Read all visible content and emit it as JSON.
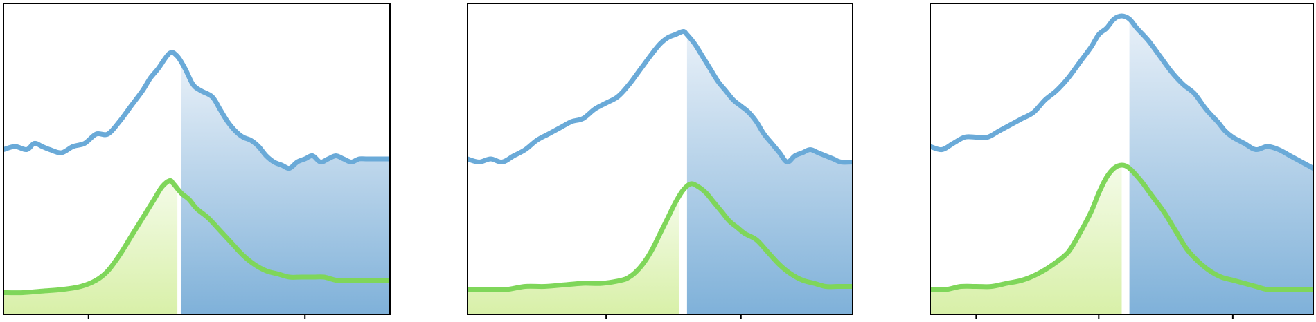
{
  "colors": {
    "blue_line": "#6aaad8",
    "blue_fill_top": "#e8f0f8",
    "blue_fill_bottom": "#7fb1d9",
    "green_line": "#7fd65a",
    "green_fill_top": "#f4fbe8",
    "green_fill_bottom": "#d8f0a8",
    "frame": "#000000",
    "background": "#ffffff"
  },
  "chart_data": [
    {
      "type": "line",
      "xlim": [
        0,
        100
      ],
      "ylim": [
        0,
        100
      ],
      "grid": false,
      "legend": "none",
      "xticks": [
        22,
        78
      ],
      "series": [
        {
          "role": "upper",
          "color": "blue",
          "shade_from": 46,
          "x": [
            0,
            3,
            6,
            8,
            10,
            12,
            15,
            18,
            21,
            24,
            27,
            30,
            33,
            36,
            38,
            40,
            43,
            45,
            47,
            49,
            51,
            54,
            56,
            58,
            60,
            62,
            64,
            66,
            68,
            70,
            72,
            74,
            76,
            78,
            80,
            82,
            84,
            86,
            88,
            90,
            92,
            94,
            96,
            98,
            100
          ],
          "y": [
            53,
            54,
            53,
            55,
            54,
            53,
            52,
            54,
            55,
            58,
            58,
            62,
            67,
            72,
            76,
            79,
            84,
            83,
            79,
            74,
            72,
            70,
            66,
            62,
            59,
            57,
            56,
            54,
            51,
            49,
            48,
            47,
            49,
            50,
            51,
            49,
            50,
            51,
            50,
            49,
            50,
            50,
            50,
            50,
            50
          ]
        },
        {
          "role": "lower",
          "color": "green",
          "shade_to": 45,
          "shade_from": 46,
          "x": [
            0,
            5,
            10,
            15,
            20,
            24,
            27,
            30,
            33,
            36,
            39,
            41,
            43,
            44,
            46,
            48,
            50,
            53,
            56,
            59,
            62,
            65,
            68,
            71,
            74,
            77,
            80,
            83,
            86,
            89,
            92,
            95,
            98,
            100
          ],
          "y": [
            7,
            7,
            7.5,
            8,
            9,
            11,
            14,
            19,
            25,
            31,
            37,
            41,
            43,
            42,
            39,
            37,
            34,
            31,
            27,
            23,
            19,
            16,
            14,
            13,
            12,
            12,
            12,
            12,
            11,
            11,
            11,
            11,
            11,
            11
          ]
        }
      ]
    },
    {
      "type": "line",
      "xlim": [
        0,
        100
      ],
      "ylim": [
        0,
        100
      ],
      "grid": false,
      "legend": "none",
      "xticks": [
        36,
        71
      ],
      "series": [
        {
          "role": "upper",
          "color": "blue",
          "shade_from": 57,
          "x": [
            0,
            3,
            6,
            9,
            12,
            15,
            18,
            21,
            24,
            27,
            30,
            33,
            36,
            39,
            42,
            45,
            48,
            50,
            52,
            54,
            56,
            57,
            59,
            61,
            63,
            65,
            67,
            69,
            71,
            73,
            75,
            77,
            79,
            81,
            83,
            85,
            87,
            89,
            91,
            93,
            95,
            97,
            100
          ],
          "y": [
            50,
            49,
            50,
            49,
            51,
            53,
            56,
            58,
            60,
            62,
            63,
            66,
            68,
            70,
            74,
            79,
            84,
            87,
            89,
            90,
            91,
            90,
            87,
            83,
            79,
            75,
            72,
            69,
            67,
            65,
            62,
            58,
            55,
            52,
            49,
            51,
            52,
            53,
            52,
            51,
            50,
            49,
            49
          ]
        },
        {
          "role": "lower",
          "color": "green",
          "shade_to": 55,
          "shade_from": 57,
          "x": [
            0,
            5,
            10,
            15,
            20,
            25,
            30,
            35,
            40,
            42,
            44,
            46,
            48,
            50,
            52,
            54,
            56,
            58,
            60,
            62,
            64,
            66,
            68,
            70,
            72,
            75,
            78,
            81,
            84,
            87,
            90,
            93,
            96,
            100
          ],
          "y": [
            8,
            8,
            8,
            9,
            9,
            9.5,
            10,
            10,
            11,
            12,
            14,
            17,
            21,
            26,
            31,
            36,
            40,
            42,
            41,
            39,
            36,
            33,
            30,
            28,
            26,
            24,
            20,
            16,
            13,
            11,
            10,
            9,
            9,
            9
          ]
        }
      ]
    },
    {
      "type": "line",
      "xlim": [
        0,
        100
      ],
      "ylim": [
        0,
        100
      ],
      "grid": false,
      "legend": "none",
      "xticks": [
        12,
        44,
        79
      ],
      "series": [
        {
          "role": "upper",
          "color": "blue",
          "shade_from": 52,
          "x": [
            0,
            3,
            6,
            9,
            12,
            15,
            18,
            21,
            24,
            27,
            30,
            33,
            36,
            39,
            42,
            44,
            46,
            48,
            50,
            52,
            54,
            57,
            60,
            63,
            66,
            69,
            72,
            75,
            77,
            79,
            82,
            85,
            88,
            91,
            94,
            97,
            100
          ],
          "y": [
            54,
            53,
            55,
            57,
            57,
            57,
            59,
            61,
            63,
            65,
            69,
            72,
            76,
            81,
            86,
            90,
            92,
            95,
            96,
            95,
            92,
            88,
            83,
            78,
            74,
            71,
            66,
            62,
            59,
            57,
            55,
            53,
            54,
            53,
            51,
            49,
            47
          ]
        },
        {
          "role": "lower",
          "color": "green",
          "shade_to": 50,
          "shade_from": 52,
          "x": [
            0,
            4,
            8,
            12,
            16,
            20,
            24,
            28,
            32,
            36,
            39,
            42,
            44,
            46,
            48,
            50,
            52,
            55,
            58,
            61,
            64,
            67,
            70,
            73,
            76,
            79,
            82,
            85,
            88,
            91,
            94,
            97,
            100
          ],
          "y": [
            8,
            8,
            9,
            9,
            9,
            10,
            11,
            13,
            16,
            20,
            26,
            33,
            39,
            44,
            47,
            48,
            47,
            43,
            38,
            33,
            27,
            21,
            17,
            14,
            12,
            11,
            10,
            9,
            8,
            8,
            8,
            8,
            8
          ]
        }
      ]
    }
  ]
}
